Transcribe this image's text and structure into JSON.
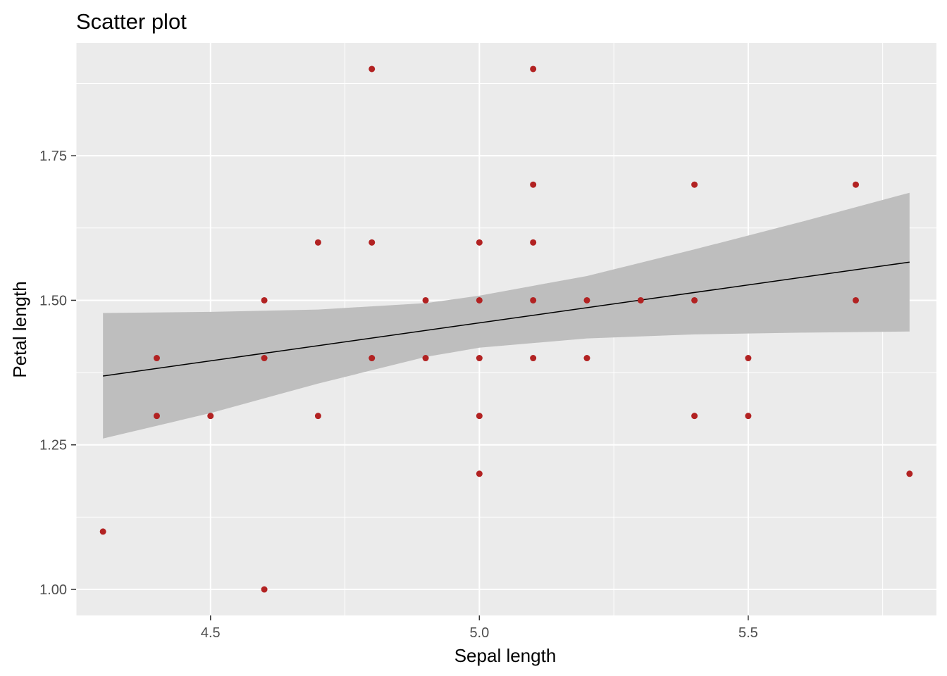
{
  "chart_data": {
    "type": "scatter",
    "title": "Scatter plot",
    "xlabel": "Sepal length",
    "ylabel": "Petal length",
    "xlim": [
      4.25,
      5.85
    ],
    "ylim": [
      0.955,
      1.945
    ],
    "x_major_ticks": [
      4.5,
      5.0,
      5.5
    ],
    "x_tick_labels": [
      "4.5",
      "5.0",
      "5.5"
    ],
    "x_minor_ticks": [
      4.25,
      4.75,
      5.25,
      5.75
    ],
    "y_major_ticks": [
      1.0,
      1.25,
      1.5,
      1.75
    ],
    "y_tick_labels": [
      "1.00",
      "1.25",
      "1.50",
      "1.75"
    ],
    "y_minor_ticks": [
      1.125,
      1.375,
      1.625,
      1.875
    ],
    "grid": true,
    "legend": "none",
    "point_color": "#B22222",
    "fit_line_color": "#000000",
    "ribbon_color": "#BEBEBE",
    "panel_color": "#EBEBEB",
    "points": [
      {
        "x": 4.3,
        "y": 1.1
      },
      {
        "x": 4.4,
        "y": 1.4
      },
      {
        "x": 4.4,
        "y": 1.3
      },
      {
        "x": 4.5,
        "y": 1.3
      },
      {
        "x": 4.6,
        "y": 1.5
      },
      {
        "x": 4.6,
        "y": 1.4
      },
      {
        "x": 4.6,
        "y": 1.0
      },
      {
        "x": 4.7,
        "y": 1.6
      },
      {
        "x": 4.7,
        "y": 1.3
      },
      {
        "x": 4.8,
        "y": 1.9
      },
      {
        "x": 4.8,
        "y": 1.6
      },
      {
        "x": 4.8,
        "y": 1.4
      },
      {
        "x": 4.9,
        "y": 1.5
      },
      {
        "x": 4.9,
        "y": 1.4
      },
      {
        "x": 5.0,
        "y": 1.6
      },
      {
        "x": 5.0,
        "y": 1.5
      },
      {
        "x": 5.0,
        "y": 1.4
      },
      {
        "x": 5.0,
        "y": 1.3
      },
      {
        "x": 5.0,
        "y": 1.2
      },
      {
        "x": 5.1,
        "y": 1.9
      },
      {
        "x": 5.1,
        "y": 1.7
      },
      {
        "x": 5.1,
        "y": 1.6
      },
      {
        "x": 5.1,
        "y": 1.5
      },
      {
        "x": 5.1,
        "y": 1.4
      },
      {
        "x": 5.2,
        "y": 1.5
      },
      {
        "x": 5.2,
        "y": 1.4
      },
      {
        "x": 5.3,
        "y": 1.5
      },
      {
        "x": 5.4,
        "y": 1.7
      },
      {
        "x": 5.4,
        "y": 1.5
      },
      {
        "x": 5.4,
        "y": 1.3
      },
      {
        "x": 5.5,
        "y": 1.4
      },
      {
        "x": 5.5,
        "y": 1.3
      },
      {
        "x": 5.7,
        "y": 1.7
      },
      {
        "x": 5.7,
        "y": 1.5
      },
      {
        "x": 5.8,
        "y": 1.2
      }
    ],
    "fit_line": [
      {
        "x": 4.3,
        "y": 1.369
      },
      {
        "x": 5.8,
        "y": 1.566
      }
    ],
    "confidence_band": [
      {
        "x": 4.3,
        "lower": 1.261,
        "upper": 1.478
      },
      {
        "x": 4.5,
        "lower": 1.305,
        "upper": 1.48
      },
      {
        "x": 4.7,
        "lower": 1.356,
        "upper": 1.484
      },
      {
        "x": 4.9,
        "lower": 1.402,
        "upper": 1.495
      },
      {
        "x": 5.0,
        "lower": 1.418,
        "upper": 1.508
      },
      {
        "x": 5.2,
        "lower": 1.434,
        "upper": 1.542
      },
      {
        "x": 5.4,
        "lower": 1.441,
        "upper": 1.588
      },
      {
        "x": 5.6,
        "lower": 1.444,
        "upper": 1.636
      },
      {
        "x": 5.8,
        "lower": 1.446,
        "upper": 1.686
      }
    ]
  }
}
